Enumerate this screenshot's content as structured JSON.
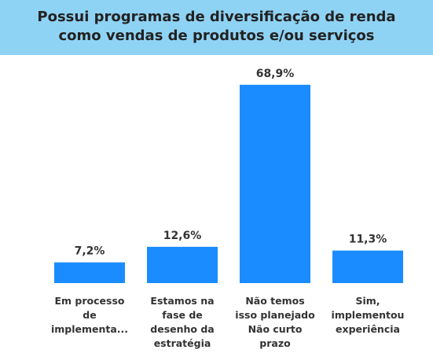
{
  "chart_data": {
    "type": "bar",
    "title": "Possui programas de diversificação de renda como vendas de produtos e/ou serviços",
    "categories": [
      "Em processo de implementa...",
      "Estamos na fase de desenho da estratégia",
      "Não temos isso planejado Não curto prazo",
      "Sim, implementou experiência"
    ],
    "values": [
      7.2,
      12.6,
      68.9,
      11.3
    ],
    "value_labels": [
      "7,2%",
      "12,6%",
      "68,9%",
      "11,3%"
    ],
    "color": "#1a8cff"
  }
}
